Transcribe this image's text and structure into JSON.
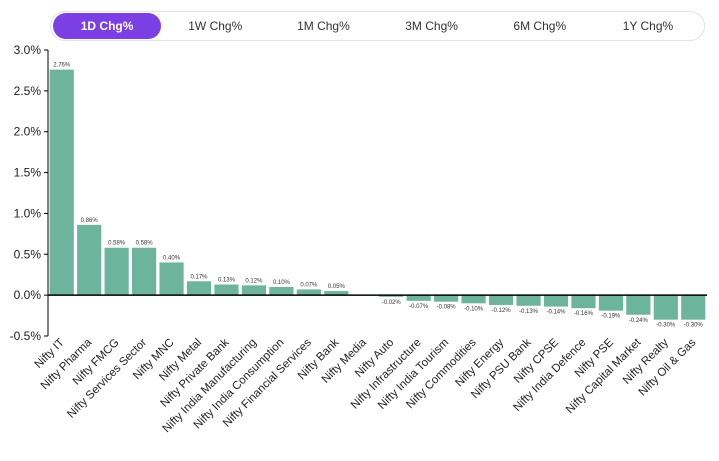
{
  "tabs": [
    {
      "label": "1D Chg%",
      "active": true
    },
    {
      "label": "1W Chg%",
      "active": false
    },
    {
      "label": "1M Chg%",
      "active": false
    },
    {
      "label": "3M Chg%",
      "active": false
    },
    {
      "label": "6M Chg%",
      "active": false
    },
    {
      "label": "1Y Chg%",
      "active": false
    }
  ],
  "colors": {
    "bar": "#6cb59c",
    "accent": "#7b3fe4",
    "axis": "#000000"
  },
  "chart_data": {
    "type": "bar",
    "ylim": [
      -0.5,
      3.0
    ],
    "yticks": [
      3.0,
      2.5,
      2.0,
      1.5,
      1.0,
      0.5,
      0.0,
      -0.5
    ],
    "ytick_labels": [
      "3.0%",
      "2.5%",
      "2.0%",
      "1.5%",
      "1.0%",
      "0.5%",
      "0.0%",
      "-0.5%"
    ],
    "grid": false,
    "categories": [
      "Nifty IT",
      "Nifty Pharma",
      "Nifty FMCG",
      "Nifty Services Sector",
      "Nifty MNC",
      "Nifty Metal",
      "Nifty Private Bank",
      "Nifty India Manufacturing",
      "Nifty India Consumption",
      "Nifty Financial Services",
      "Nifty Bank",
      "Nifty Media",
      "Nifty Auto",
      "Nifty Infrastructure",
      "Nifty India Tourism",
      "Nifty Commodities",
      "Nifty Energy",
      "Nifty PSU Bank",
      "Nifty CPSE",
      "Nifty India Defence",
      "Nifty PSE",
      "Nifty Capital Market",
      "Nifty Realty",
      "Nifty Oil & Gas"
    ],
    "values": [
      2.76,
      0.86,
      0.58,
      0.58,
      0.4,
      0.17,
      0.13,
      0.12,
      0.1,
      0.07,
      0.05,
      0.0,
      -0.02,
      -0.07,
      -0.08,
      -0.1,
      -0.12,
      -0.13,
      -0.14,
      -0.16,
      -0.19,
      -0.24,
      -0.3,
      -0.3
    ],
    "data_labels": [
      "2.76%",
      "0.86%",
      "0.58%",
      "0.58%",
      "0.40%",
      "0.17%",
      "0.13%",
      "0.12%",
      "0.10%",
      "0.07%",
      "0.05%",
      "",
      "-0.02%",
      "-0.07%",
      "-0.08%",
      "-0.10%",
      "-0.12%",
      "-0.13%",
      "-0.14%",
      "-0.16%",
      "-0.19%",
      "-0.24%",
      "-0.30%",
      "-0.30%"
    ]
  }
}
